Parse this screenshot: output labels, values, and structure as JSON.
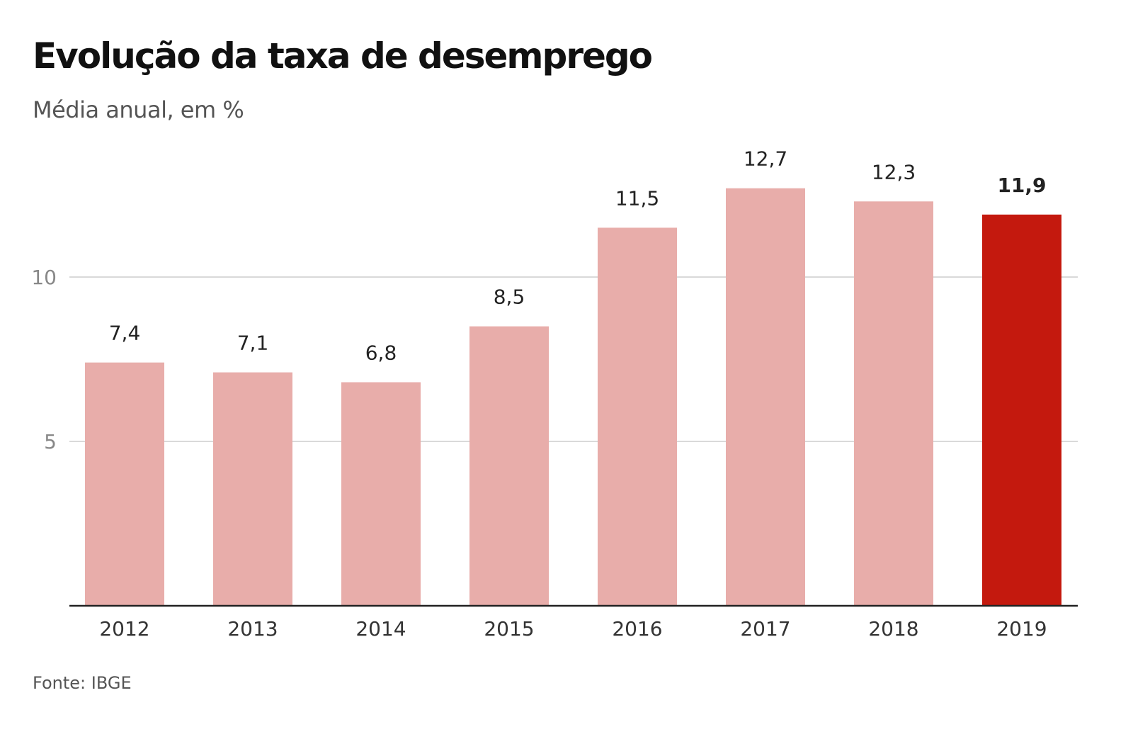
{
  "chart_data": {
    "type": "bar",
    "title": "Evolução da taxa de desemprego",
    "subtitle": "Média anual, em %",
    "source": "Fonte: IBGE",
    "xlabel": "",
    "ylabel": "",
    "categories": [
      "2012",
      "2013",
      "2014",
      "2015",
      "2016",
      "2017",
      "2018",
      "2019"
    ],
    "values": [
      7.4,
      7.1,
      6.8,
      8.5,
      11.5,
      12.7,
      12.3,
      11.9
    ],
    "data_labels": [
      "7,4",
      "7,1",
      "6,8",
      "8,5",
      "11,5",
      "12,7",
      "12,3",
      "11,9"
    ],
    "highlighted_index": 7,
    "ylim": [
      0,
      13
    ],
    "yticks": [
      5,
      10
    ],
    "ytick_labels": [
      "5",
      "10"
    ],
    "grid": true,
    "legend": "none",
    "colors": {
      "bar": "#e8adaa",
      "highlight": "#c4190e",
      "grid": "#d9d9d9",
      "axis": "#222222"
    }
  }
}
